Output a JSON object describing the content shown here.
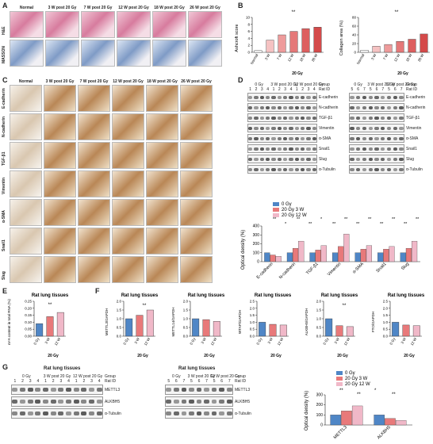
{
  "panels": {
    "A": "A",
    "B": "B",
    "C": "C",
    "D": "D",
    "E": "E",
    "F": "F",
    "G": "G"
  },
  "panelA": {
    "columns": [
      "Normal",
      "3 W post 20 Gy",
      "7 W post 20 Gy",
      "12 W post 20 Gy",
      "18 W post 20 Gy",
      "26 W post 20 Gy"
    ],
    "rows": [
      "H&E",
      "MASSON"
    ]
  },
  "panelB": {
    "ashcroft": {
      "ylabel": "Ashcroft score",
      "yticks": [
        "0",
        "2",
        "4",
        "6",
        "8",
        "10"
      ],
      "categories": [
        "Normal",
        "3 W",
        "7 W",
        "12 W",
        "18 W",
        "26 W"
      ],
      "values": [
        0.5,
        3.5,
        5.0,
        6.0,
        6.8,
        7.2
      ],
      "group": "20 Gy",
      "sig": "**"
    },
    "collagen": {
      "ylabel": "Collagen area (%)",
      "yticks": [
        "0",
        "20",
        "40",
        "60",
        "80"
      ],
      "categories": [
        "Normal",
        "3 W",
        "7 W",
        "12 W",
        "18 W",
        "26 W"
      ],
      "values": [
        5,
        14,
        18,
        25,
        30,
        42
      ],
      "group": "20 Gy",
      "sig": "**"
    }
  },
  "panelC": {
    "columns": [
      "Normal",
      "3 W post 20 Gy",
      "7 W post 20 Gy",
      "12 W post 20 Gy",
      "18 W post 20 Gy",
      "26 W post 20 Gy"
    ],
    "rows": [
      "E-cadherin",
      "N-cadherin",
      "TGF-β1",
      "Vimentin",
      "α-SMA",
      "Snail1",
      "Slug"
    ]
  },
  "panelD": {
    "left": {
      "groups": [
        "0 Gy",
        "3 W post 20 Gy",
        "12 W post 20 Gy"
      ],
      "group_label": "Group",
      "ratid_label": "Rat ID",
      "ratids": [
        "1",
        "2",
        "3",
        "4",
        "1",
        "2",
        "3",
        "4",
        "1",
        "2",
        "3",
        "4"
      ]
    },
    "right": {
      "groups": [
        "0 Gy",
        "3 W post 20 Gy",
        "12 W post 20 Gy"
      ],
      "group_label": "Group",
      "ratid_label": "Rat ID",
      "ratids": [
        "5",
        "6",
        "7",
        "5",
        "6",
        "7",
        "5",
        "6",
        "7"
      ]
    },
    "bands": [
      "E-cadherin",
      "N-cadherin",
      "TGF-β1",
      "Vimentin",
      "α-SMA",
      "Snail1",
      "Slug",
      "α-Tubulin"
    ],
    "chart": {
      "ylabel": "Optical density (%)",
      "yticks": [
        "0",
        "100",
        "200",
        "300",
        "400"
      ],
      "legend": [
        "0 Gy",
        "20 Gy 3 W",
        "20 Gy 12 W"
      ],
      "categories": [
        "E-cadherin",
        "N-cadherin",
        "TGF-β1",
        "Vimentin",
        "α-SMA",
        "Snail1",
        "Slug"
      ],
      "series": [
        [
          100,
          100,
          100,
          100,
          100,
          100,
          100
        ],
        [
          75,
          150,
          130,
          170,
          140,
          140,
          150
        ],
        [
          60,
          230,
          180,
          310,
          180,
          170,
          230
        ]
      ],
      "sig": [
        "**",
        "*",
        "**",
        "**",
        "*",
        "**",
        "**",
        "**",
        "**",
        "**",
        "**",
        "**",
        "**"
      ]
    }
  },
  "panelE": {
    "title": "Rat lung tissues",
    "ylabel": "m⁶A content in total RNA (%)",
    "yticks": [
      "0.00",
      "0.05",
      "0.10",
      "0.15",
      "0.20",
      "0.25"
    ],
    "categories": [
      "0 Gy",
      "3 W",
      "12 W"
    ],
    "values": [
      0.09,
      0.14,
      0.17
    ],
    "group": "20 Gy",
    "sig": "**"
  },
  "panelF": [
    {
      "title": "Rat lung tissues",
      "ylabel": "METTL3/GAPDH",
      "yticks": [
        "0.0",
        "0.5",
        "1.0",
        "1.5",
        "2.0"
      ],
      "categories": [
        "0 Gy",
        "3 W",
        "12 W"
      ],
      "values": [
        1.0,
        1.2,
        1.5
      ],
      "group": "20 Gy",
      "sig": "**"
    },
    {
      "title": "Rat lung tissues",
      "ylabel": "METTL14/GAPDH",
      "yticks": [
        "0.0",
        "0.5",
        "1.0",
        "1.5",
        "2.0"
      ],
      "categories": [
        "0 Gy",
        "3 W",
        "12 W"
      ],
      "values": [
        1.0,
        0.95,
        0.85
      ],
      "group": "20 Gy",
      "sig": ""
    },
    {
      "title": "Rat lung tissues",
      "ylabel": "WTAP/GAPDH",
      "yticks": [
        "0.0",
        "0.5",
        "1.0",
        "1.5",
        "2.0",
        "2.5"
      ],
      "categories": [
        "0 Gy",
        "3 W",
        "12 W"
      ],
      "values": [
        1.0,
        0.85,
        0.8
      ],
      "group": "20 Gy",
      "sig": ""
    },
    {
      "title": "Rat lung tissues",
      "ylabel": "ALKBH5/GAPDH",
      "yticks": [
        "0.0",
        "0.5",
        "1.0",
        "1.5",
        "2.0"
      ],
      "categories": [
        "0 Gy",
        "3 W",
        "12 W"
      ],
      "values": [
        1.0,
        0.6,
        0.55
      ],
      "group": "20 Gy",
      "sig": "**"
    },
    {
      "title": "Rat lung tissues",
      "ylabel": "FTO/GAPDH",
      "yticks": [
        "0.0",
        "0.5",
        "1.0",
        "1.5",
        "2.0",
        "2.5"
      ],
      "categories": [
        "0 Gy",
        "3 W",
        "12 W"
      ],
      "values": [
        1.0,
        0.8,
        0.75
      ],
      "group": "20 Gy",
      "sig": ""
    }
  ],
  "panelG": {
    "left": {
      "title": "Rat lung tissues",
      "groups": [
        "0 Gy",
        "3 W post 20 Gy",
        "12 W post 20 Gy"
      ],
      "group_label": "Group",
      "ratid_label": "Rat ID",
      "ratids": [
        "1",
        "2",
        "3",
        "4",
        "1",
        "2",
        "3",
        "4",
        "1",
        "2",
        "3",
        "4"
      ]
    },
    "right": {
      "title": "Rat lung tissues",
      "groups": [
        "0 Gy",
        "3 W post 20 Gy",
        "12 W post 20 Gy"
      ],
      "group_label": "Group",
      "ratid_label": "Rat ID",
      "ratids": [
        "5",
        "6",
        "7",
        "5",
        "6",
        "7",
        "5",
        "6",
        "7"
      ]
    },
    "bands": [
      "METTL3",
      "ALKBH5",
      "α-Tubulin"
    ],
    "chart": {
      "ylabel": "Optical density (%)",
      "yticks": [
        "0",
        "100",
        "200",
        "300"
      ],
      "legend": [
        "0 Gy",
        "20 Gy 3 W",
        "20 Gy 12 W"
      ],
      "categories": [
        "METTL3",
        "ALKBH5"
      ],
      "series": [
        [
          100,
          100
        ],
        [
          140,
          65
        ],
        [
          190,
          45
        ]
      ],
      "sig": [
        "**",
        "**",
        "*",
        "**"
      ]
    }
  },
  "colors": {
    "s0": "#4f86c6",
    "s1": "#e8797a",
    "s2": "#f0b8c8"
  }
}
